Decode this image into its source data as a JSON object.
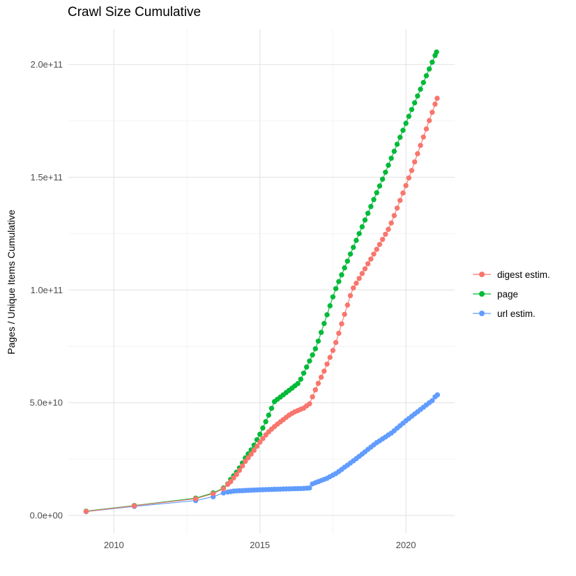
{
  "chart_data": {
    "type": "scatter",
    "title": "Crawl Size Cumulative",
    "xlabel": "",
    "ylabel": "Pages / Unique Items Cumulative",
    "note_units": "y values stored in billions (1e9 items)",
    "xlim": [
      2008.44,
      2021.67
    ],
    "ylim_e9": [
      -8,
      215.6
    ],
    "grid": "on",
    "legend_position": "right",
    "x_ticks": {
      "major": [
        2010,
        2015,
        2020
      ],
      "labels": [
        "2010",
        "2015",
        "2020"
      ],
      "minor": [
        2012.5,
        2017.5
      ]
    },
    "y_ticks": {
      "major_e9": [
        0,
        50,
        100,
        150,
        200
      ],
      "labels": [
        "0.0e+00",
        "5.0e+10",
        "1.0e+11",
        "1.5e+11",
        "2.0e+11"
      ],
      "minor_e9": [
        25,
        75,
        125,
        175
      ]
    },
    "colors": {
      "digest": "#F8766D",
      "page": "#00BA38",
      "url": "#619CFF",
      "grid_major": "#E4E4E4",
      "grid_minor": "#F2F2F2",
      "axis_text": "#4D4D4D"
    },
    "series": [
      {
        "name": "digest estim.",
        "color": "#F8766D",
        "points": [
          [
            2009.05,
            1.8
          ],
          [
            2010.7,
            4.3
          ],
          [
            2012.8,
            7.4
          ],
          [
            2013.4,
            9.7
          ],
          [
            2013.75,
            11.9
          ],
          [
            2013.9,
            13.8
          ],
          [
            2014,
            15
          ],
          [
            2014.1,
            16.6
          ],
          [
            2014.2,
            18.2
          ],
          [
            2014.3,
            20
          ],
          [
            2014.4,
            22
          ],
          [
            2014.5,
            24
          ],
          [
            2014.6,
            25.6
          ],
          [
            2014.7,
            27.2
          ],
          [
            2014.8,
            28.9
          ],
          [
            2014.9,
            30.7
          ],
          [
            2015,
            32.5
          ],
          [
            2015.1,
            34.1
          ],
          [
            2015.2,
            35.7
          ],
          [
            2015.3,
            37.1
          ],
          [
            2015.4,
            38.3
          ],
          [
            2015.5,
            39.4
          ],
          [
            2015.6,
            40.5
          ],
          [
            2015.7,
            41.5
          ],
          [
            2015.8,
            42.5
          ],
          [
            2015.9,
            43.5
          ],
          [
            2016,
            44.5
          ],
          [
            2016.1,
            45.3
          ],
          [
            2016.2,
            46
          ],
          [
            2016.3,
            46.5
          ],
          [
            2016.4,
            47.1
          ],
          [
            2016.5,
            47.6
          ],
          [
            2016.6,
            48.6
          ],
          [
            2016.7,
            49.5
          ],
          [
            2016.8,
            52.6
          ],
          [
            2016.9,
            55.7
          ],
          [
            2017,
            58.6
          ],
          [
            2017.1,
            61.3
          ],
          [
            2017.2,
            64
          ],
          [
            2017.3,
            67.1
          ],
          [
            2017.4,
            70.1
          ],
          [
            2017.5,
            73.2
          ],
          [
            2017.6,
            76.7
          ],
          [
            2017.7,
            80.8
          ],
          [
            2017.8,
            85
          ],
          [
            2017.9,
            89.2
          ],
          [
            2018,
            93.3
          ],
          [
            2018.1,
            97.5
          ],
          [
            2018.2,
            100.9
          ],
          [
            2018.3,
            103
          ],
          [
            2018.4,
            105.1
          ],
          [
            2018.5,
            107.3
          ],
          [
            2018.6,
            109.4
          ],
          [
            2018.7,
            111.6
          ],
          [
            2018.8,
            113.7
          ],
          [
            2018.9,
            115.9
          ],
          [
            2019,
            118
          ],
          [
            2019.1,
            120.2
          ],
          [
            2019.2,
            122.4
          ],
          [
            2019.3,
            124.7
          ],
          [
            2019.4,
            126.9
          ],
          [
            2019.5,
            129.7
          ],
          [
            2019.6,
            133
          ],
          [
            2019.7,
            136.3
          ],
          [
            2019.8,
            139.7
          ],
          [
            2019.9,
            143
          ],
          [
            2020,
            146.3
          ],
          [
            2020.1,
            149.7
          ],
          [
            2020.2,
            153
          ],
          [
            2020.3,
            156.8
          ],
          [
            2020.4,
            160.4
          ],
          [
            2020.5,
            164.1
          ],
          [
            2020.6,
            167.8
          ],
          [
            2020.7,
            171.4
          ],
          [
            2020.8,
            175.1
          ],
          [
            2020.9,
            178.8
          ],
          [
            2021,
            182.4
          ],
          [
            2021.07,
            185
          ]
        ]
      },
      {
        "name": "page",
        "color": "#00BA38",
        "points": [
          [
            2009.05,
            1.9
          ],
          [
            2010.7,
            4.4
          ],
          [
            2012.8,
            7.7
          ],
          [
            2013.4,
            10
          ],
          [
            2013.75,
            12.2
          ],
          [
            2013.9,
            14
          ],
          [
            2014,
            16
          ],
          [
            2014.1,
            17.6
          ],
          [
            2014.2,
            19.2
          ],
          [
            2014.3,
            21.1
          ],
          [
            2014.4,
            23.3
          ],
          [
            2014.5,
            25.5
          ],
          [
            2014.6,
            27.3
          ],
          [
            2014.7,
            29.1
          ],
          [
            2014.8,
            31.2
          ],
          [
            2014.9,
            33.6
          ],
          [
            2015,
            36
          ],
          [
            2015.1,
            38.8
          ],
          [
            2015.2,
            41.6
          ],
          [
            2015.3,
            44.5
          ],
          [
            2015.4,
            47.5
          ],
          [
            2015.5,
            50.5
          ],
          [
            2015.6,
            51.5
          ],
          [
            2015.7,
            52.5
          ],
          [
            2015.8,
            53.5
          ],
          [
            2015.9,
            54.5
          ],
          [
            2016,
            55.5
          ],
          [
            2016.1,
            56.5
          ],
          [
            2016.2,
            57.5
          ],
          [
            2016.3,
            58.5
          ],
          [
            2016.4,
            60.4
          ],
          [
            2016.5,
            63.1
          ],
          [
            2016.6,
            65.8
          ],
          [
            2016.7,
            68.5
          ],
          [
            2016.8,
            71.2
          ],
          [
            2016.9,
            73.9
          ],
          [
            2017,
            77.3
          ],
          [
            2017.1,
            81.2
          ],
          [
            2017.2,
            85.1
          ],
          [
            2017.3,
            89
          ],
          [
            2017.4,
            93
          ],
          [
            2017.5,
            96.9
          ],
          [
            2017.6,
            100.6
          ],
          [
            2017.7,
            103.7
          ],
          [
            2017.8,
            106.7
          ],
          [
            2017.9,
            109.8
          ],
          [
            2018,
            112.8
          ],
          [
            2018.1,
            115.9
          ],
          [
            2018.2,
            118.9
          ],
          [
            2018.3,
            122
          ],
          [
            2018.4,
            125
          ],
          [
            2018.5,
            128
          ],
          [
            2018.6,
            131
          ],
          [
            2018.7,
            134
          ],
          [
            2018.8,
            137
          ],
          [
            2018.9,
            140.1
          ],
          [
            2019,
            143.1
          ],
          [
            2019.1,
            146.1
          ],
          [
            2019.2,
            149.1
          ],
          [
            2019.3,
            152.2
          ],
          [
            2019.4,
            155.3
          ],
          [
            2019.5,
            158.4
          ],
          [
            2019.6,
            161.5
          ],
          [
            2019.7,
            164.6
          ],
          [
            2019.8,
            167.7
          ],
          [
            2019.9,
            170.8
          ],
          [
            2020,
            173.9
          ],
          [
            2020.1,
            177
          ],
          [
            2020.2,
            180
          ],
          [
            2020.3,
            183
          ],
          [
            2020.4,
            186
          ],
          [
            2020.5,
            189
          ],
          [
            2020.6,
            192
          ],
          [
            2020.7,
            195
          ],
          [
            2020.8,
            198
          ],
          [
            2020.9,
            201
          ],
          [
            2021,
            204
          ],
          [
            2021.05,
            205.5
          ]
        ]
      },
      {
        "name": "url estim.",
        "color": "#619CFF",
        "points": [
          [
            2009.05,
            1.7
          ],
          [
            2010.7,
            4
          ],
          [
            2012.8,
            6.6
          ],
          [
            2013.4,
            8.3
          ],
          [
            2013.75,
            10
          ],
          [
            2013.9,
            10.4
          ],
          [
            2014,
            10.6
          ],
          [
            2014.1,
            10.8
          ],
          [
            2014.2,
            10.9
          ],
          [
            2014.3,
            10.95
          ],
          [
            2014.4,
            11
          ],
          [
            2014.5,
            11.1
          ],
          [
            2014.6,
            11.16
          ],
          [
            2014.7,
            11.22
          ],
          [
            2014.8,
            11.28
          ],
          [
            2014.9,
            11.34
          ],
          [
            2015,
            11.4
          ],
          [
            2015.1,
            11.44
          ],
          [
            2015.2,
            11.48
          ],
          [
            2015.3,
            11.52
          ],
          [
            2015.4,
            11.56
          ],
          [
            2015.5,
            11.6
          ],
          [
            2015.6,
            11.64
          ],
          [
            2015.7,
            11.68
          ],
          [
            2015.8,
            11.72
          ],
          [
            2015.9,
            11.76
          ],
          [
            2016,
            11.8
          ],
          [
            2016.1,
            11.84
          ],
          [
            2016.2,
            11.88
          ],
          [
            2016.3,
            11.92
          ],
          [
            2016.4,
            11.96
          ],
          [
            2016.5,
            12
          ],
          [
            2016.6,
            12.1
          ],
          [
            2016.7,
            12.2
          ],
          [
            2016.8,
            14
          ],
          [
            2016.9,
            14.5
          ],
          [
            2017,
            15
          ],
          [
            2017.1,
            15.5
          ],
          [
            2017.2,
            16
          ],
          [
            2017.3,
            16.5
          ],
          [
            2017.4,
            17.2
          ],
          [
            2017.5,
            17.9
          ],
          [
            2017.6,
            18.6
          ],
          [
            2017.7,
            19.5
          ],
          [
            2017.8,
            20.4
          ],
          [
            2017.9,
            21.4
          ],
          [
            2018,
            22.3
          ],
          [
            2018.1,
            23.3
          ],
          [
            2018.2,
            24.2
          ],
          [
            2018.3,
            25.2
          ],
          [
            2018.4,
            26.2
          ],
          [
            2018.5,
            27.2
          ],
          [
            2018.6,
            28.2
          ],
          [
            2018.7,
            29.3
          ],
          [
            2018.8,
            30.3
          ],
          [
            2018.9,
            31.3
          ],
          [
            2019,
            32.3
          ],
          [
            2019.1,
            33.1
          ],
          [
            2019.2,
            34
          ],
          [
            2019.3,
            34.8
          ],
          [
            2019.4,
            35.7
          ],
          [
            2019.5,
            36.5
          ],
          [
            2019.6,
            37.6
          ],
          [
            2019.7,
            38.7
          ],
          [
            2019.8,
            39.8
          ],
          [
            2019.9,
            40.9
          ],
          [
            2020,
            42
          ],
          [
            2020.1,
            43
          ],
          [
            2020.2,
            44
          ],
          [
            2020.3,
            45
          ],
          [
            2020.4,
            46
          ],
          [
            2020.5,
            47
          ],
          [
            2020.6,
            48
          ],
          [
            2020.7,
            49
          ],
          [
            2020.8,
            50
          ],
          [
            2020.9,
            50.9
          ],
          [
            2021,
            52.6
          ],
          [
            2021.08,
            53.5
          ]
        ]
      }
    ]
  }
}
